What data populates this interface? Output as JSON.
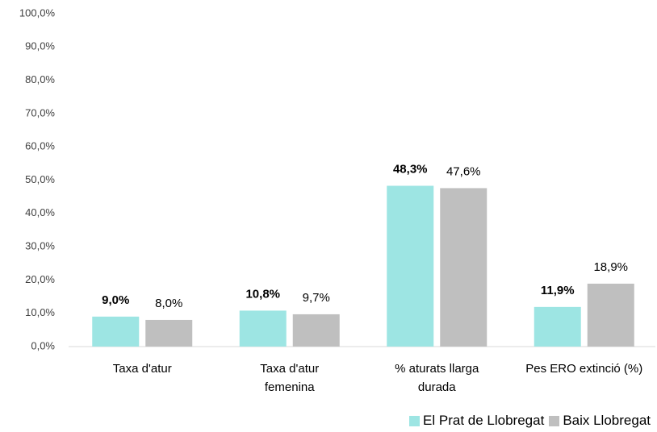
{
  "chart_data": {
    "type": "bar",
    "categories": [
      "Taxa d'atur",
      "Taxa d'atur femenina",
      "% aturats llarga durada",
      "Pes ERO extinció (%)"
    ],
    "series": [
      {
        "name": "El Prat de Llobregat",
        "color": "#9de5e3",
        "values": [
          9.0,
          10.8,
          48.3,
          11.9
        ],
        "value_labels": [
          "9,0%",
          "10,8%",
          "48,3%",
          "11,9%"
        ]
      },
      {
        "name": "Baix Llobregat",
        "color": "#bfbfbf",
        "values": [
          8.0,
          9.7,
          47.6,
          18.9
        ],
        "value_labels": [
          "8,0%",
          "9,7%",
          "47,6%",
          "18,9%"
        ]
      }
    ],
    "ylim": [
      0,
      100
    ],
    "yticks": [
      {
        "value": 0,
        "label": "0,0%"
      },
      {
        "value": 10,
        "label": "10,0%"
      },
      {
        "value": 20,
        "label": "20,0%"
      },
      {
        "value": 30,
        "label": "30,0%"
      },
      {
        "value": 40,
        "label": "40,0%"
      },
      {
        "value": 50,
        "label": "50,0%"
      },
      {
        "value": 60,
        "label": "60,0%"
      },
      {
        "value": 70,
        "label": "70,0%"
      },
      {
        "value": 80,
        "label": "80,0%"
      },
      {
        "value": 90,
        "label": "90,0%"
      },
      {
        "value": 100,
        "label": "100,0%"
      }
    ],
    "grid": false
  }
}
